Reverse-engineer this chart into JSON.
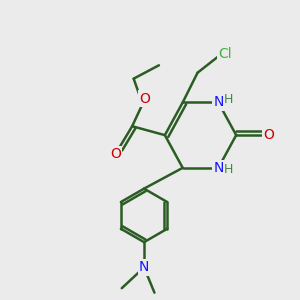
{
  "bg_color": "#ebebeb",
  "bond_color": "#2a5c24",
  "bond_width": 1.8,
  "atom_colors": {
    "C": "#2a5c24",
    "N": "#1414ff",
    "O": "#cc0000",
    "Cl": "#3db33d",
    "H": "#3d8c3d"
  },
  "font_size_main": 10,
  "font_size_small": 9,
  "font_size_tiny": 8
}
